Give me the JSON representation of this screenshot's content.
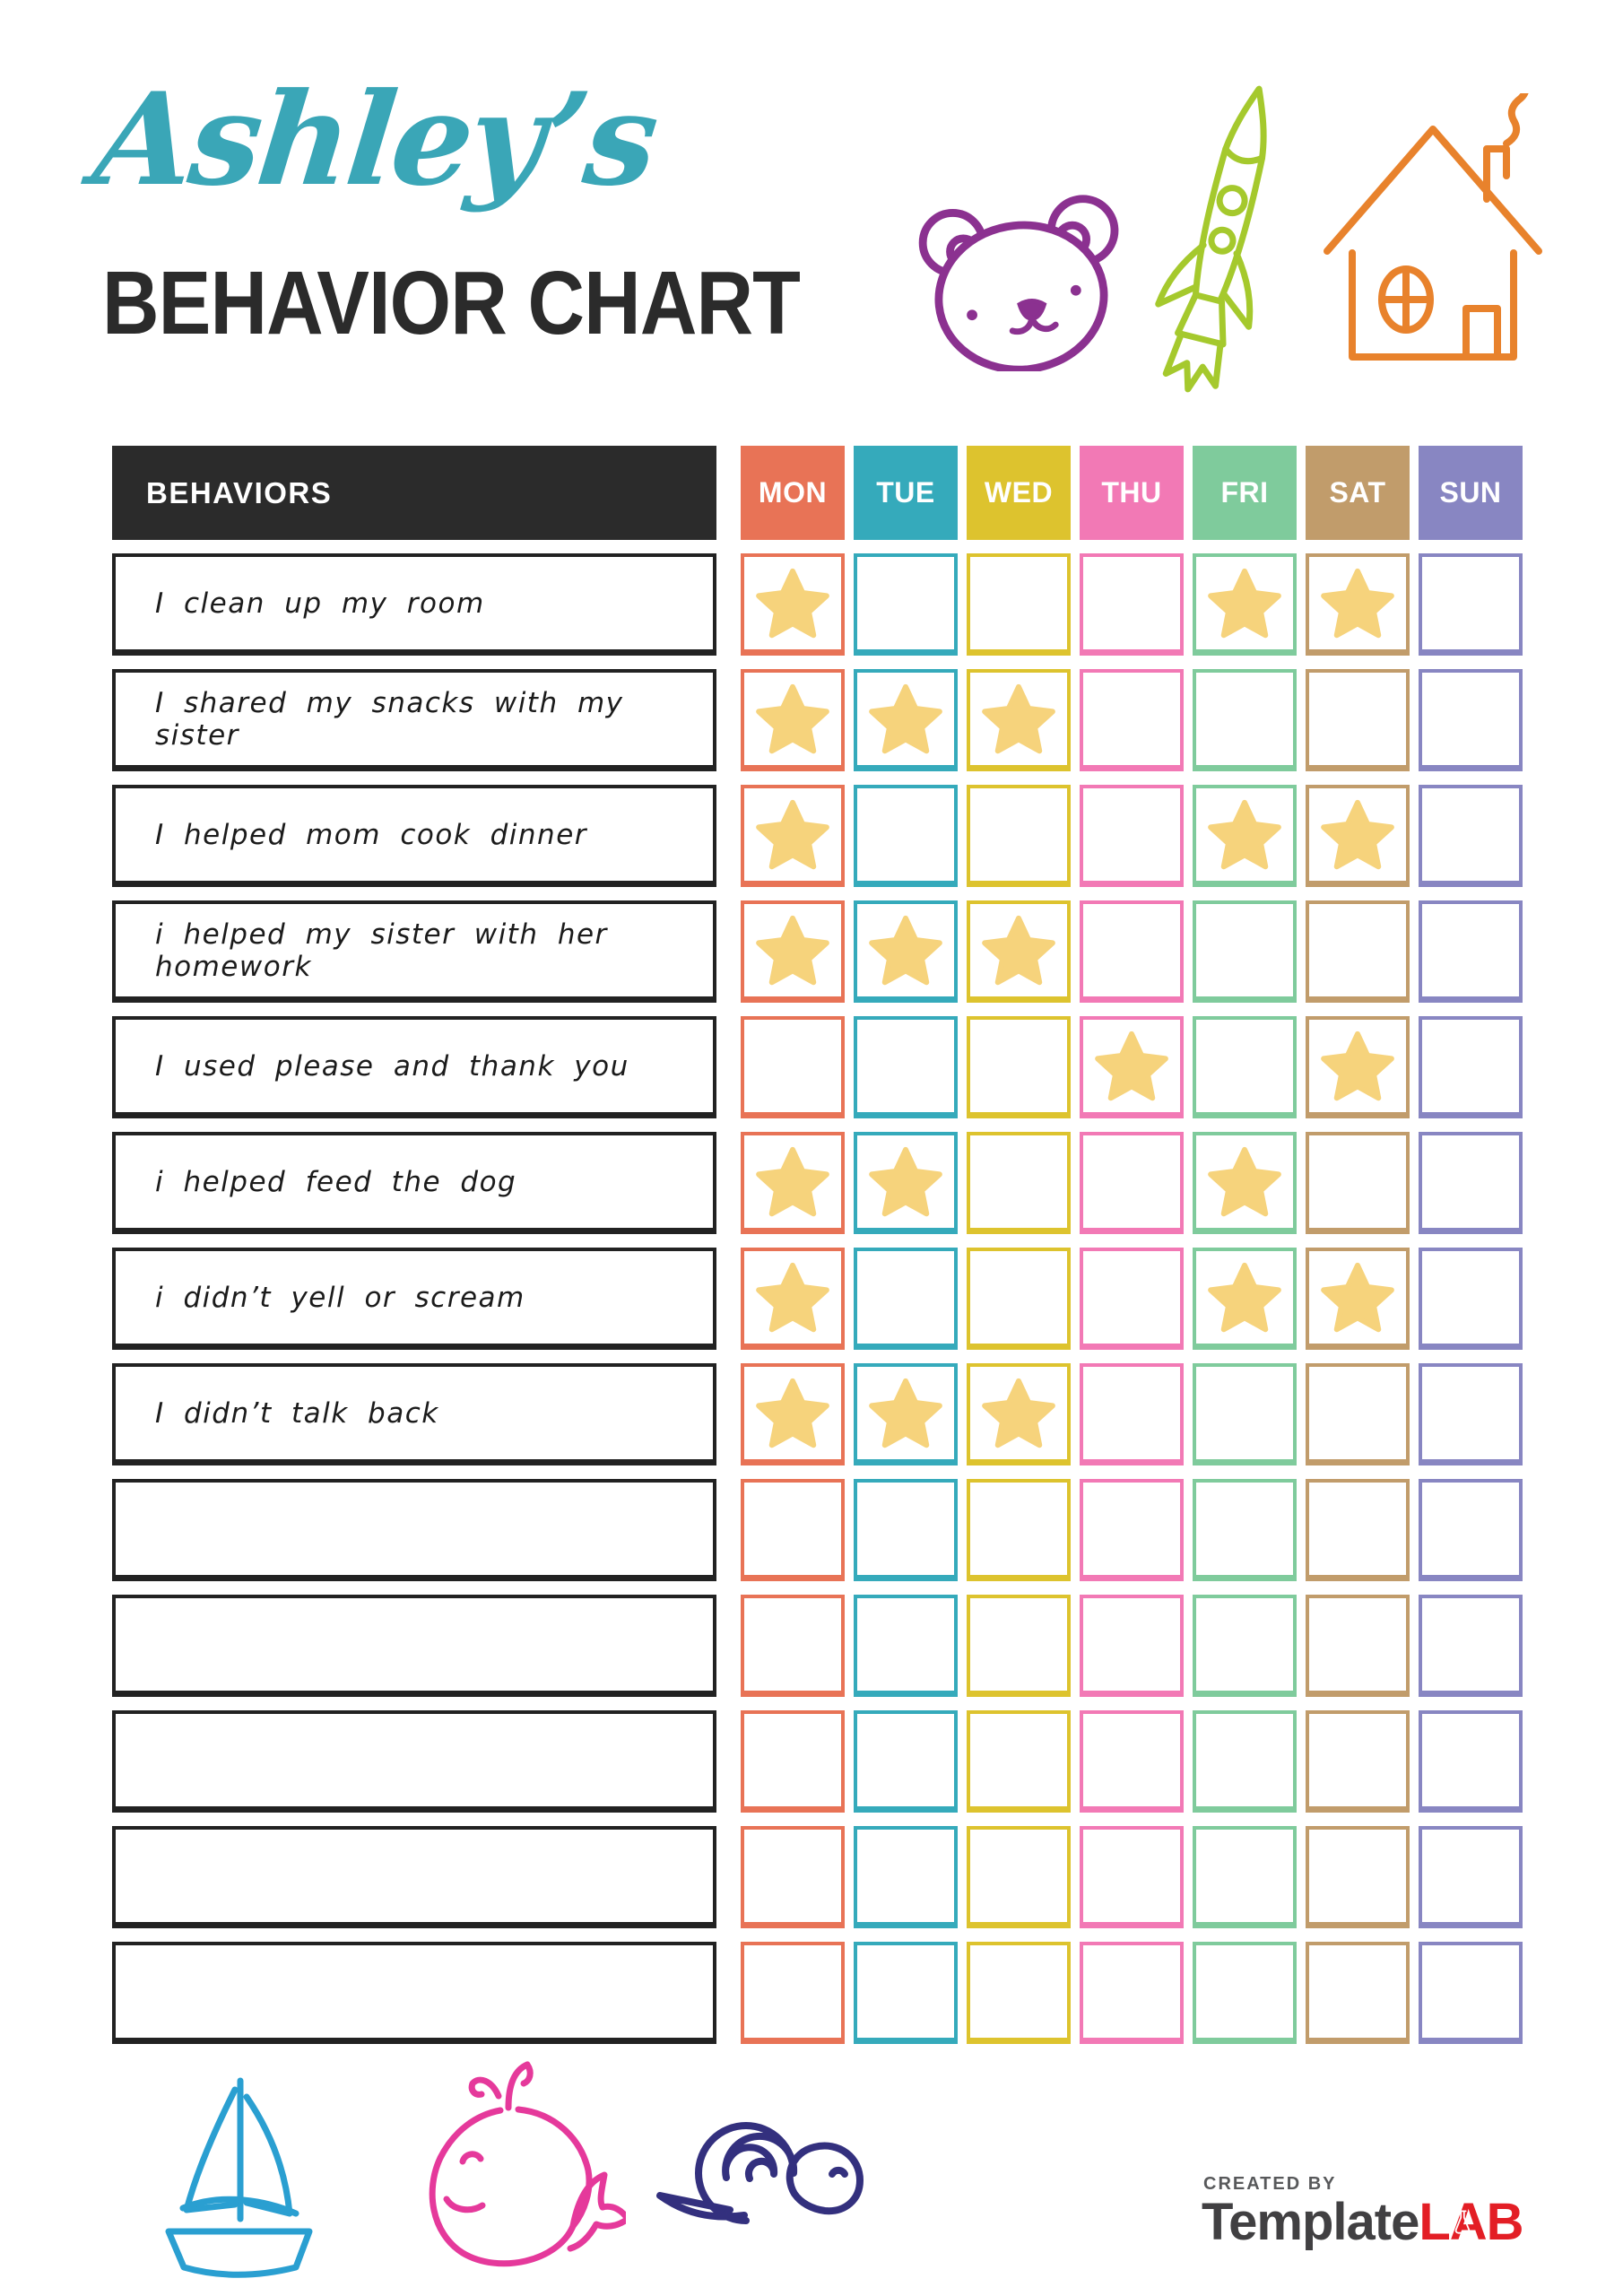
{
  "header": {
    "title": "Ashley’s",
    "subtitle": "BEHAVIOR CHART",
    "title_color": "#3aa6b7",
    "subtitle_color": "#2b2b2b"
  },
  "doodles": {
    "bear_color": "#8b3190",
    "rocket_color": "#a5c92d",
    "house_color": "#e8822c",
    "sailboat_color": "#2a9fd1",
    "whale_color": "#e5399b",
    "snail_color": "#33307e"
  },
  "icons": {
    "star_icon": "★",
    "teddy_bear_icon": "hand-drawn bear face",
    "rocket_icon": "hand-drawn rocket",
    "house_icon": "hand-drawn house",
    "sailboat_icon": "hand-drawn sailboat",
    "whale_icon": "hand-drawn whale",
    "snail_icon": "hand-drawn snail",
    "flask_icon": "lab flask"
  },
  "table": {
    "behaviors_header": "BEHAVIORS",
    "header_bg": "#2b2b2b",
    "header_text_color": "#ffffff",
    "star_color": "#f6d37c",
    "days": [
      {
        "label": "MON",
        "color": "#e87356"
      },
      {
        "label": "TUE",
        "color": "#35aabb"
      },
      {
        "label": "WED",
        "color": "#ddc32e"
      },
      {
        "label": "THU",
        "color": "#f279b5"
      },
      {
        "label": "FRI",
        "color": "#7fcb9c"
      },
      {
        "label": "SAT",
        "color": "#c19c6b"
      },
      {
        "label": "SUN",
        "color": "#8886c2"
      }
    ],
    "rows": [
      {
        "behavior": "I clean up my room",
        "stars": [
          "MON",
          "FRI",
          "SAT"
        ]
      },
      {
        "behavior": "I shared my snacks with my sister",
        "stars": [
          "MON",
          "TUE",
          "WED"
        ]
      },
      {
        "behavior": "I helped mom cook dinner",
        "stars": [
          "MON",
          "FRI",
          "SAT"
        ]
      },
      {
        "behavior": "i helped my sister with her homework",
        "stars": [
          "MON",
          "TUE",
          "WED"
        ]
      },
      {
        "behavior": "I used please and thank you",
        "stars": [
          "THU",
          "SAT"
        ]
      },
      {
        "behavior": "i helped feed the dog",
        "stars": [
          "MON",
          "TUE",
          "FRI"
        ]
      },
      {
        "behavior": "i didn’t yell or scream",
        "stars": [
          "MON",
          "FRI",
          "SAT"
        ]
      },
      {
        "behavior": "I didn’t talk back",
        "stars": [
          "MON",
          "TUE",
          "WED"
        ]
      },
      {
        "behavior": "",
        "stars": []
      },
      {
        "behavior": "",
        "stars": []
      },
      {
        "behavior": "",
        "stars": []
      },
      {
        "behavior": "",
        "stars": []
      },
      {
        "behavior": "",
        "stars": []
      }
    ]
  },
  "footer": {
    "credit_label": "CREATED BY",
    "brand_name": "Template",
    "brand_suffix": "LAB",
    "credit_color": "#58595b",
    "brand_name_color": "#414042",
    "brand_suffix_color": "#e31e25"
  }
}
